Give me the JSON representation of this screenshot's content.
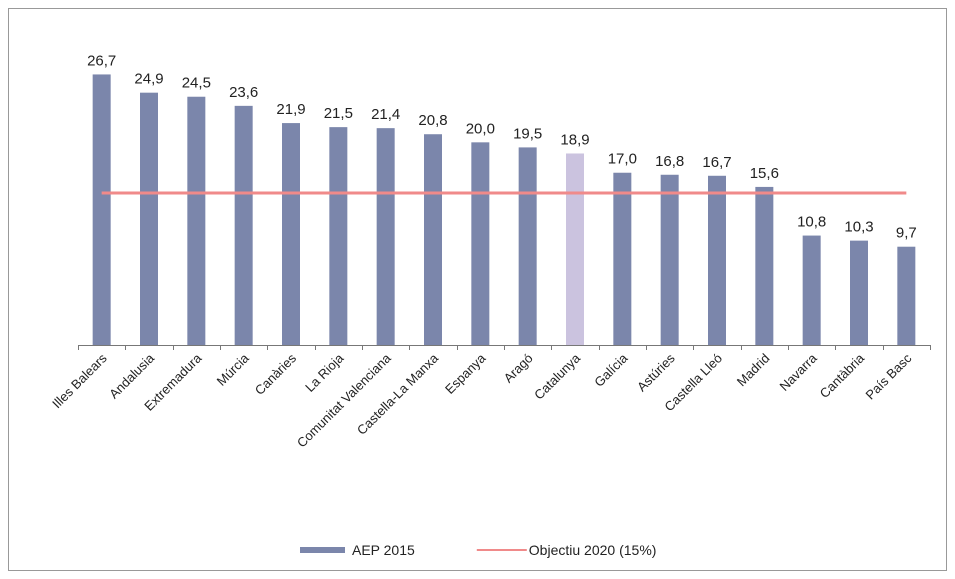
{
  "chart_data": {
    "type": "bar",
    "categories": [
      "Illes Balears",
      "Andalusia",
      "Extremadura",
      "Múrcia",
      "Canàries",
      "La Rioja",
      "Comunitat Valenciana",
      "Castella-La Manxa",
      "Espanya",
      "Aragó",
      "Catalunya",
      "Galícia",
      "Astúries",
      "Castella Lleó",
      "Madrid",
      "Navarra",
      "Cantàbria",
      "País Basc"
    ],
    "series": [
      {
        "name": "AEP 2015",
        "type": "bar",
        "color": "#7b86ab",
        "colors": [
          "#7b86ab",
          "#7b86ab",
          "#7b86ab",
          "#7b86ab",
          "#7b86ab",
          "#7b86ab",
          "#7b86ab",
          "#7b86ab",
          "#7b86ab",
          "#7b86ab",
          "#cbc3df",
          "#7b86ab",
          "#7b86ab",
          "#7b86ab",
          "#7b86ab",
          "#7b86ab",
          "#7b86ab",
          "#7b86ab"
        ],
        "values": [
          26.7,
          24.9,
          24.5,
          23.6,
          21.9,
          21.5,
          21.4,
          20.8,
          20.0,
          19.5,
          18.9,
          17.0,
          16.8,
          16.7,
          15.6,
          10.8,
          10.3,
          9.7
        ],
        "value_labels": [
          "26,7",
          "24,9",
          "24,5",
          "23,6",
          "21,9",
          "21,5",
          "21,4",
          "20,8",
          "20,0",
          "19,5",
          "18,9",
          "17,0",
          "16,8",
          "16,7",
          "15,6",
          "10,8",
          "10,3",
          "9,7"
        ]
      },
      {
        "name": "Objectiu 2020 (15%)",
        "type": "line",
        "color": "#f08a8a",
        "values": [
          15,
          15,
          15,
          15,
          15,
          15,
          15,
          15,
          15,
          15,
          15,
          15,
          15,
          15,
          15,
          15,
          15,
          15
        ]
      }
    ],
    "ylim": [
      0,
      30
    ],
    "legend": "bottom"
  }
}
